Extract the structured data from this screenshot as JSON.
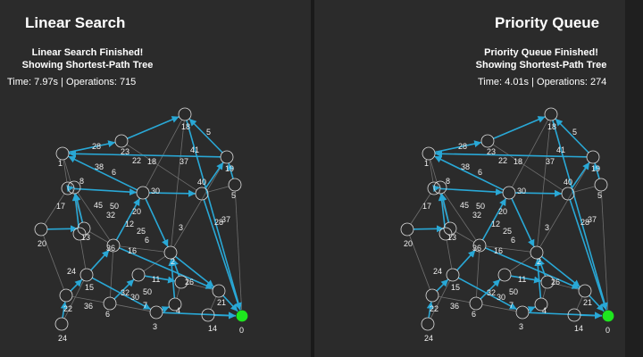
{
  "left_panel": {
    "title": "Linear Search",
    "status_line1": "Linear Search Finished!",
    "status_line2": "Showing Shortest-Path Tree",
    "metrics": "Time: 7.97s | Operations: 715"
  },
  "right_panel": {
    "title": "Priority Queue",
    "status_line1": "Priority Queue Finished!",
    "status_line2": "Showing Shortest-Path Tree",
    "metrics": "Time: 4.01s | Operations: 274"
  },
  "graph": {
    "node_labels": [
      "0",
      "1",
      "2",
      "3",
      "4",
      "5",
      "6",
      "7",
      "8",
      "9",
      "10",
      "11",
      "12",
      "13",
      "14",
      "15",
      "16",
      "17",
      "18",
      "19",
      "20",
      "21",
      "22",
      "23",
      "24"
    ],
    "source_node": "0",
    "edge_weight_labels": [
      "28",
      "22",
      "18",
      "37",
      "41",
      "5",
      "38",
      "6",
      "8",
      "30",
      "45",
      "50",
      "32",
      "12",
      "24",
      "15",
      "32",
      "50",
      "36",
      "7",
      "26",
      "11",
      "40",
      "17",
      "20",
      "28",
      "37",
      "4",
      "2",
      "3",
      "30",
      "13",
      "25",
      "6",
      "16",
      "36"
    ],
    "colors": {
      "tree_edge": "#29a8d6",
      "edge": "#6f6f6f",
      "node_stroke": "#dcdcdc",
      "source_fill": "#1ee61e",
      "panel_bg": "#2b2b2b"
    }
  }
}
